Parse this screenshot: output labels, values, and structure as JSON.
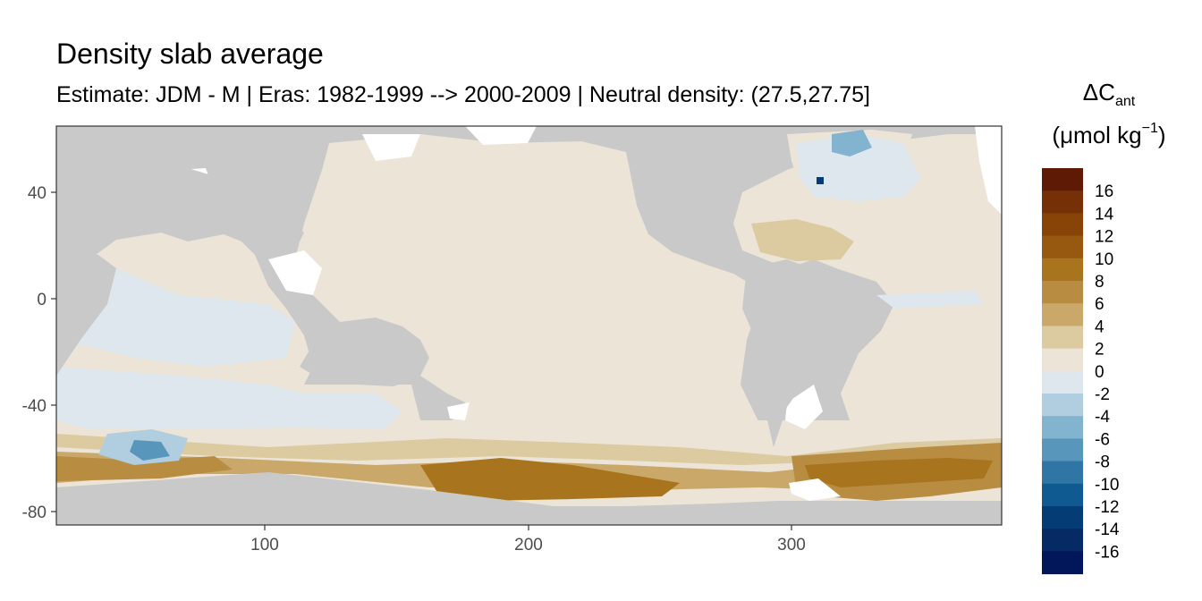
{
  "title": "Density slab average",
  "subtitle": "Estimate: JDM - M | Eras: 1982-1999 --> 2000-2009 | Neutral density: (27.5,27.75]",
  "legend": {
    "title_symbol": "ΔC",
    "title_sub": "ant",
    "unit_prefix": "(μmol kg",
    "unit_sup": "−1",
    "unit_suffix": ")",
    "labels": [
      "16",
      "14",
      "12",
      "10",
      "8",
      "6",
      "4",
      "2",
      "0",
      "-2",
      "-4",
      "-6",
      "-8",
      "-10",
      "-12",
      "-14",
      "-16"
    ],
    "colors": [
      "#5e1a04",
      "#753007",
      "#874406",
      "#97590f",
      "#a8741d",
      "#b88d42",
      "#c9a86a",
      "#dccaa1",
      "#ebe4d7",
      "#dde7ed",
      "#b1cde0",
      "#82b4d0",
      "#5896bb",
      "#2f76a5",
      "#0f5a90",
      "#043c75",
      "#052a64",
      "#02175a"
    ]
  },
  "axes": {
    "x_ticks": [
      "100",
      "200",
      "300"
    ],
    "y_ticks": [
      "40",
      "0",
      "-40",
      "-80"
    ]
  },
  "colors": {
    "land": "#c9c9c9",
    "ocean_baseline": "#ebe4d7",
    "panel_border": "#333333"
  }
}
